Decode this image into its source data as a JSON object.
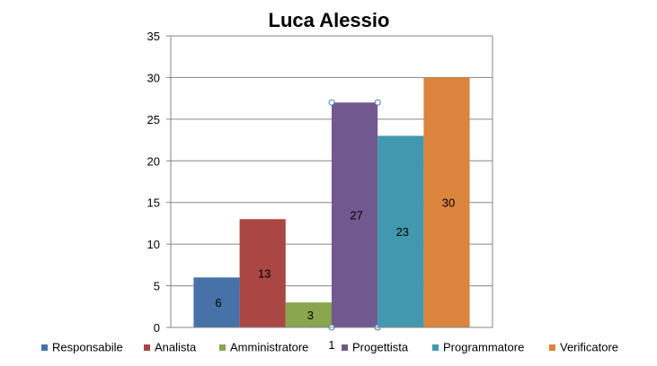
{
  "chart_data": {
    "type": "bar",
    "title": "Luca Alessio",
    "categories": [
      "1"
    ],
    "series": [
      {
        "name": "Responsabile",
        "values": [
          6
        ],
        "color": "#4672A8"
      },
      {
        "name": "Analista",
        "values": [
          13
        ],
        "color": "#AA4643"
      },
      {
        "name": "Amministratore",
        "values": [
          3
        ],
        "color": "#89A54E"
      },
      {
        "name": "Progettista",
        "values": [
          27
        ],
        "color": "#71588F"
      },
      {
        "name": "Programmatore",
        "values": [
          23
        ],
        "color": "#4198AF"
      },
      {
        "name": "Verificatore",
        "values": [
          30
        ],
        "color": "#DB843D"
      }
    ],
    "ylim": [
      0,
      35
    ],
    "yticks": [
      0,
      5,
      10,
      15,
      20,
      25,
      30,
      35
    ],
    "grid": true,
    "legend": "bottom",
    "selected_series": "Progettista"
  }
}
